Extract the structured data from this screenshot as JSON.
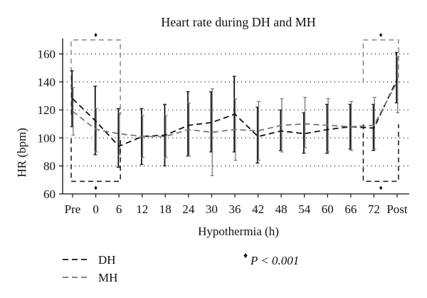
{
  "chart_data": {
    "type": "line",
    "title": "Heart rate during DH and MH",
    "xlabel": "Hypothermia (h)",
    "ylabel": "HR (bpm)",
    "categories": [
      "Pre",
      "0",
      "6",
      "12",
      "18",
      "24",
      "30",
      "36",
      "42",
      "48",
      "54",
      "60",
      "66",
      "72",
      "Post"
    ],
    "yticks": [
      60,
      80,
      100,
      120,
      140,
      160
    ],
    "ylim": [
      60,
      170
    ],
    "grid": "horizontal-dotted",
    "series": [
      {
        "name": "DH",
        "style": "dashed-black",
        "color": "#111111",
        "values": [
          128,
          112,
          94,
          101,
          102,
          109,
          111,
          117,
          101,
          105,
          103,
          106,
          108,
          107,
          142
        ],
        "err_low": [
          108,
          88,
          79,
          81,
          80,
          87,
          90,
          90,
          82,
          91,
          89,
          89,
          92,
          91,
          125
        ],
        "err_high": [
          148,
          137,
          121,
          121,
          124,
          133,
          133,
          144,
          122,
          120,
          118,
          124,
          124,
          124,
          161
        ]
      },
      {
        "name": "MH",
        "style": "dashed-gray",
        "color": "#777777",
        "values": [
          119,
          106,
          103,
          101,
          101,
          106,
          104,
          106,
          105,
          109,
          110,
          109,
          108,
          109,
          140
        ],
        "err_low": [
          102,
          90,
          88,
          86,
          86,
          87,
          73,
          84,
          84,
          90,
          93,
          90,
          91,
          92,
          118
        ],
        "err_high": [
          136,
          121,
          118,
          116,
          116,
          125,
          135,
          128,
          126,
          128,
          129,
          128,
          126,
          129,
          158
        ]
      }
    ],
    "annotations": {
      "significance_symbol": "♦",
      "significance_text": "P < 0.001"
    }
  }
}
